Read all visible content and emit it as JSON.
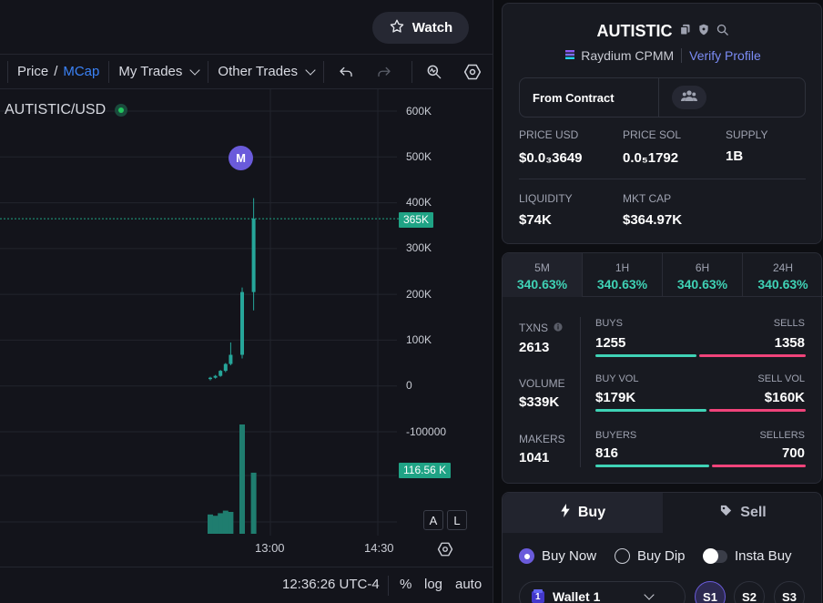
{
  "header": {
    "watch_label": "Watch"
  },
  "toolbar": {
    "price_label": "Price",
    "slash": "/",
    "mcap_label": "MCap",
    "my_trades_label": "My Trades",
    "other_trades_label": "Other Trades"
  },
  "chart": {
    "symbol": "AUTISTIC/USD",
    "marker_label": "M",
    "last_price_tag": "365K",
    "volume_tag": "116.56 K",
    "auto_btn": "A",
    "log_btn": "L",
    "y_labels": [
      "600K",
      "500K",
      "400K",
      "300K",
      "200K",
      "100K",
      "0",
      "-100000"
    ],
    "x_labels": [
      "13:00",
      "14:30"
    ]
  },
  "chart_data": {
    "type": "candlestick",
    "title": "",
    "series": [
      {
        "name": "",
        "values": [
          {
            "o": 15000,
            "h": 20000,
            "l": 12000,
            "c": 18000,
            "vol": 0.3
          },
          {
            "o": 18000,
            "h": 24000,
            "l": 16000,
            "c": 22000,
            "vol": 0.28
          },
          {
            "o": 22000,
            "h": 35000,
            "l": 20000,
            "c": 33000,
            "vol": 0.32
          },
          {
            "o": 33000,
            "h": 50000,
            "l": 30000,
            "c": 48000,
            "vol": 0.36
          },
          {
            "o": 48000,
            "h": 95000,
            "l": 45000,
            "c": 68000,
            "vol": 0.34
          },
          {
            "o": 68000,
            "h": 215000,
            "l": 60000,
            "c": 205000,
            "vol": 1.7
          },
          {
            "o": 205000,
            "h": 410000,
            "l": 165000,
            "c": 365000,
            "vol": 0.95
          }
        ]
      }
    ],
    "ylim": [
      -100000,
      600000
    ],
    "last_price": 365000,
    "last_volume": "116.56 K",
    "grid": true
  },
  "bottom": {
    "time": "12:36:26 UTC-4",
    "percent": "%",
    "log": "log",
    "auto": "auto"
  },
  "token": {
    "name": "AUTISTIC",
    "pool": "Raydium CPMM",
    "verify": "Verify Profile",
    "contract_label": "From Contract",
    "stats": [
      {
        "label": "PRICE USD",
        "value": "$0.0₃3649"
      },
      {
        "label": "PRICE SOL",
        "value": "0.0₅1792"
      },
      {
        "label": "SUPPLY",
        "value": "1B"
      },
      {
        "label": "LIQUIDITY",
        "value": "$74K"
      },
      {
        "label": "MKT CAP",
        "value": "$364.97K"
      }
    ]
  },
  "timeframes": [
    {
      "label": "5M",
      "value": "340.63%"
    },
    {
      "label": "1H",
      "value": "340.63%"
    },
    {
      "label": "6H",
      "value": "340.63%"
    },
    {
      "label": "24H",
      "value": "340.63%"
    }
  ],
  "activity": {
    "txns_label": "TXNS",
    "txns": "2613",
    "volume_label": "VOLUME",
    "volume": "$339K",
    "makers_label": "MAKERS",
    "makers": "1041",
    "buys_label": "BUYS",
    "buys": "1255",
    "sells_label": "SELLS",
    "sells": "1358",
    "buy_vol_label": "BUY VOL",
    "buy_vol": "$179K",
    "sell_vol_label": "SELL VOL",
    "sell_vol": "$160K",
    "buyers_label": "BUYERS",
    "buyers": "816",
    "sellers_label": "SELLERS",
    "sellers": "700",
    "buy_share": 0.48,
    "buyvol_share": 0.53,
    "buyer_share": 0.54
  },
  "trade": {
    "buy_tab": "Buy",
    "sell_tab": "Sell",
    "buy_now": "Buy Now",
    "buy_dip": "Buy Dip",
    "insta_buy": "Insta Buy",
    "wallet_num": "1",
    "wallet": "Wallet 1",
    "slots": [
      "S1",
      "S2",
      "S3"
    ]
  },
  "colors": {
    "accent": "#6a5bdb",
    "green": "#26a69a",
    "teal": "#3fd3b6",
    "red": "#f0437a"
  }
}
